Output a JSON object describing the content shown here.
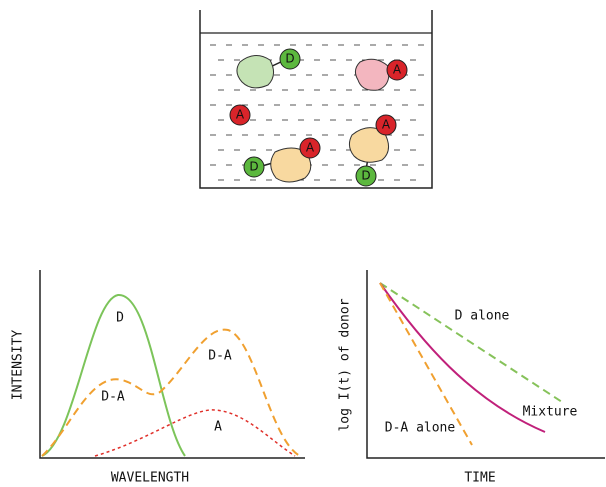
{
  "beaker": {
    "markers": [
      "D",
      "A",
      "A",
      "A",
      "D",
      "A",
      "D"
    ]
  },
  "spectrum": {
    "y_label": "INTENSITY",
    "x_label": "WAVELENGTH",
    "curve_labels": [
      "D",
      "D-A",
      "D-A",
      "A"
    ]
  },
  "decay": {
    "y_label": "log I(t) of donor",
    "x_label": "TIME",
    "curve_labels": [
      "D alone",
      "Mixture",
      "D-A alone"
    ]
  }
}
